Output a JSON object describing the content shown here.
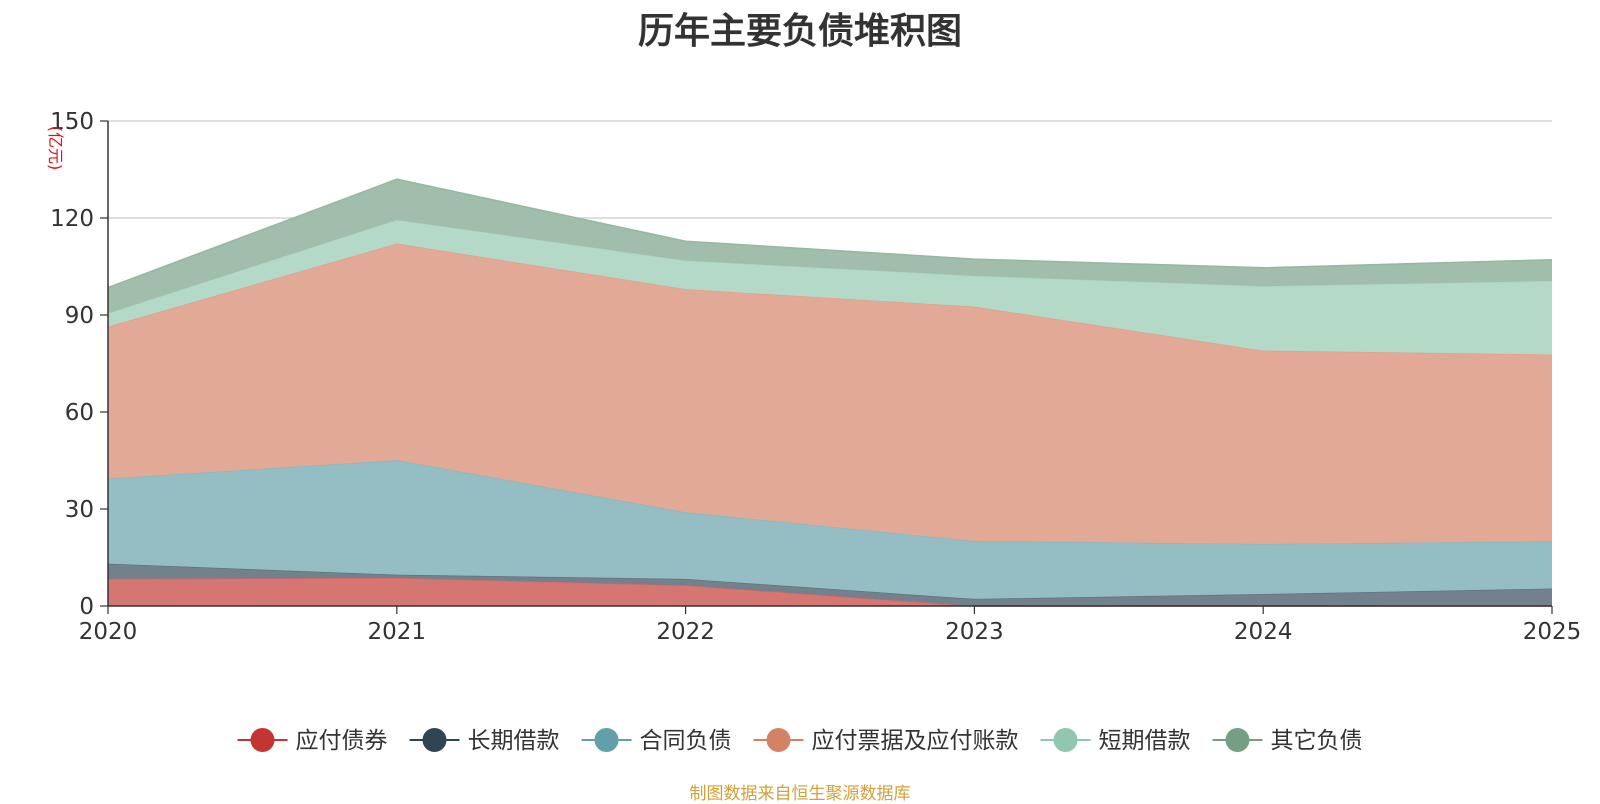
{
  "chart_data": {
    "type": "area",
    "stacked": true,
    "title": "历年主要负债堆积图",
    "ylabel": "(亿元)",
    "xlabel": "",
    "x": [
      "2020",
      "2021",
      "2022",
      "2023",
      "2024",
      "2025"
    ],
    "ylim": [
      0,
      150
    ],
    "yticks": [
      "0",
      "30",
      "60",
      "90",
      "120",
      "150"
    ],
    "grid": true,
    "legend_position": "bottom",
    "series": [
      {
        "name": "应付债券",
        "color": "#c23531",
        "values": [
          8.4,
          8.7,
          6.4,
          0,
          0,
          0
        ]
      },
      {
        "name": "长期借款",
        "color": "#2f4554",
        "values": [
          4.7,
          1.0,
          2.0,
          2.2,
          3.7,
          5.4
        ]
      },
      {
        "name": "合同负债",
        "color": "#61a0a8",
        "values": [
          26.3,
          35.4,
          20.6,
          17.9,
          15.5,
          14.6
        ]
      },
      {
        "name": "应付票据及应付账款",
        "color": "#d48265",
        "values": [
          47.0,
          67.0,
          69.0,
          72.5,
          59.8,
          57.8
        ]
      },
      {
        "name": "短期借款",
        "color": "#91c7ae",
        "values": [
          4.1,
          7.3,
          8.8,
          9.5,
          19.9,
          22.7
        ]
      },
      {
        "name": "其它负债",
        "color": "#749f83",
        "values": [
          8.0,
          12.6,
          6.0,
          5.2,
          5.7,
          6.6
        ]
      }
    ]
  },
  "source_note": "制图数据来自恒生聚源数据库"
}
